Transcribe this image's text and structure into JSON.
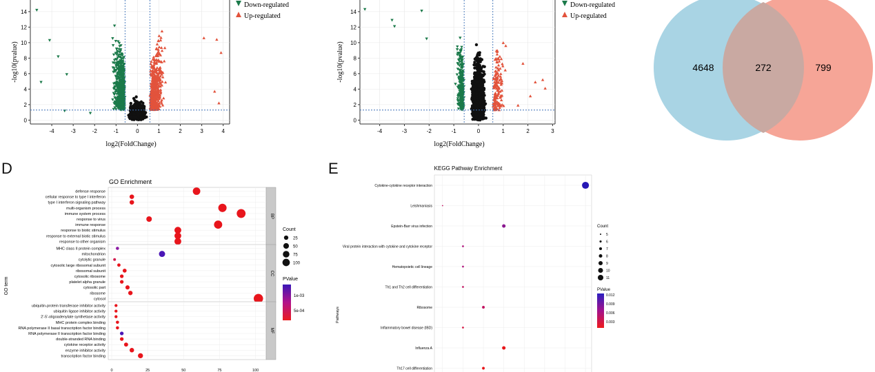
{
  "chart_data": [
    {
      "type": "scatter",
      "name": "volcano-a",
      "xlabel": "log2(FoldChange)",
      "ylabel": "-log10(pvalue)",
      "xlim": [
        -5,
        4.3
      ],
      "ylim": [
        -0.5,
        15.5
      ],
      "x_ticks": [
        "-4",
        "-3",
        "-2",
        "-1",
        "0",
        "1",
        "2",
        "3",
        "4"
      ],
      "x_tick_values": [
        -4,
        -3,
        -2,
        -1,
        0,
        1,
        2,
        3,
        4
      ],
      "y_ticks": [
        "0",
        "2",
        "4",
        "6",
        "8",
        "10",
        "12",
        "14"
      ],
      "y_tick_values": [
        0,
        2,
        4,
        6,
        8,
        10,
        12,
        14
      ],
      "fc_threshold": [
        -0.58,
        0.58
      ],
      "p_threshold": 1.3,
      "legend": [
        "Down-regulated",
        "Up-regulated"
      ],
      "colors": {
        "down": "#1b7a4a",
        "up": "#e2533c",
        "ns": "#111111",
        "threshold": "#3a6fb7"
      }
    },
    {
      "type": "scatter",
      "name": "volcano-b",
      "xlabel": "log2(FoldChange)",
      "ylabel": "-log10(pvalue)",
      "xlim": [
        -4.8,
        3.1
      ],
      "ylim": [
        -0.5,
        15.5
      ],
      "x_ticks": [
        "-4",
        "-3",
        "-2",
        "-1",
        "0",
        "1",
        "2",
        "3"
      ],
      "x_tick_values": [
        -4,
        -3,
        -2,
        -1,
        0,
        1,
        2,
        3
      ],
      "y_ticks": [
        "0",
        "2",
        "4",
        "6",
        "8",
        "10",
        "12",
        "14"
      ],
      "y_tick_values": [
        0,
        2,
        4,
        6,
        8,
        10,
        12,
        14
      ],
      "fc_threshold": [
        -0.58,
        0.58
      ],
      "p_threshold": 1.3,
      "legend": [
        "Down-regulated",
        "Up-regulated"
      ],
      "colors": {
        "down": "#1b7a4a",
        "up": "#e2533c",
        "ns": "#111111",
        "threshold": "#3a6fb7"
      }
    },
    {
      "type": "venn",
      "name": "venn",
      "left_only": "4648",
      "intersection": "272",
      "right_only": "799",
      "colors": {
        "left": "#a9d4e4",
        "right": "#f6a597",
        "overlap": "#c9a9a2"
      }
    },
    {
      "type": "scatter",
      "name": "go-enrichment",
      "panel_letter": "D",
      "title": "GO Enrichment",
      "xlabel": "",
      "ylabel": "GO term",
      "xlim": [
        0,
        105
      ],
      "x_ticks": [
        "0",
        "25",
        "50",
        "75",
        "100"
      ],
      "x_tick_values": [
        0,
        25,
        50,
        75,
        100
      ],
      "facets": [
        {
          "label": "BP",
          "terms": [
            {
              "term": "defense response",
              "count": 59,
              "p": 0.0001
            },
            {
              "term": "cellular response to type I interferon",
              "count": 14,
              "p": 0.0001
            },
            {
              "term": "type I interferon signaling pathway",
              "count": 14,
              "p": 0.0001
            },
            {
              "term": "multi-organism process",
              "count": 77,
              "p": 0.0001
            },
            {
              "term": "immune system process",
              "count": 90,
              "p": 0.0001
            },
            {
              "term": "response to virus",
              "count": 26,
              "p": 0.0001
            },
            {
              "term": "immune response",
              "count": 74,
              "p": 0.0001
            },
            {
              "term": "response to biotic stimulus",
              "count": 46,
              "p": 0.0001
            },
            {
              "term": "response to external biotic stimulus",
              "count": 46,
              "p": 0.0001
            },
            {
              "term": "response to other organism",
              "count": 46,
              "p": 0.0001
            }
          ]
        },
        {
          "label": "CC",
          "terms": [
            {
              "term": "MHC class II protein complex",
              "count": 4,
              "p": 0.0008
            },
            {
              "term": "mitochondrion",
              "count": 35,
              "p": 0.0011
            },
            {
              "term": "cytolytic granule",
              "count": 2,
              "p": 0.0003
            },
            {
              "term": "cytosolic large ribosomal subunit",
              "count": 5,
              "p": 0.0002
            },
            {
              "term": "ribosomal subunit",
              "count": 9,
              "p": 0.0002
            },
            {
              "term": "cytosolic ribosome",
              "count": 7,
              "p": 0.0002
            },
            {
              "term": "platelet alpha granule",
              "count": 7,
              "p": 0.0002
            },
            {
              "term": "cytosolic part",
              "count": 11,
              "p": 0.0001
            },
            {
              "term": "ribosome",
              "count": 13,
              "p": 0.0001
            },
            {
              "term": "cytosol",
              "count": 102,
              "p": 0.0001
            }
          ]
        },
        {
          "label": "MF",
          "terms": [
            {
              "term": "ubiquitin-protein transferase inhibitor activity",
              "count": 3,
              "p": 0.0002
            },
            {
              "term": "ubiquitin ligase inhibitor activity",
              "count": 3,
              "p": 0.0002
            },
            {
              "term": "2'-5'-oligoadenylate synthetase activity",
              "count": 3,
              "p": 0.0001
            },
            {
              "term": "MHC protein complex binding",
              "count": 4,
              "p": 0.0002
            },
            {
              "term": "RNA polymerase II basal transcription factor binding",
              "count": 4,
              "p": 0.0002
            },
            {
              "term": "RNA polymerase II transcription factor binding",
              "count": 7,
              "p": 0.0012
            },
            {
              "term": "double-stranded RNA binding",
              "count": 7,
              "p": 0.0002
            },
            {
              "term": "cytokine receptor activity",
              "count": 10,
              "p": 0.0002
            },
            {
              "term": "enzyme inhibitor activity",
              "count": 14,
              "p": 0.0001
            },
            {
              "term": "transcription factor binding",
              "count": 20,
              "p": 0.0001
            }
          ]
        }
      ],
      "size_legend": {
        "title": "Count",
        "labels": [
          "25",
          "50",
          "75",
          "100"
        ],
        "values": [
          25,
          50,
          75,
          100
        ]
      },
      "color_legend": {
        "title": "PValue",
        "labels": [
          "1e-03",
          "5e-04"
        ]
      }
    },
    {
      "type": "scatter",
      "name": "kegg-enrichment",
      "panel_letter": "E",
      "title": "KEGG Pathway Enrichment",
      "xlabel": "",
      "ylabel": "Pathways",
      "xlim": [
        3.6,
        11.3
      ],
      "pathways": [
        {
          "term": "Cytokine-cytokine receptor interaction",
          "count": 11,
          "p": 0.012
        },
        {
          "term": "Leishmaniasis",
          "count": 4,
          "p": 0.004
        },
        {
          "term": "Epstein-Barr virus infection",
          "count": 7,
          "p": 0.007
        },
        {
          "term": "Viral protein interaction with cytokine and cytokine receptor",
          "count": 5,
          "p": 0.006
        },
        {
          "term": "Hematopoietic cell lineage",
          "count": 5,
          "p": 0.005
        },
        {
          "term": "Th1 and Th2 cell differentiation",
          "count": 5,
          "p": 0.004
        },
        {
          "term": "Ribosome",
          "count": 6,
          "p": 0.004
        },
        {
          "term": "Inflammatory bowel disease (IBD)",
          "count": 5,
          "p": 0.003
        },
        {
          "term": "Influenza A",
          "count": 7,
          "p": 0.002
        },
        {
          "term": "Th17 cell differentiation",
          "count": 6,
          "p": 0.002
        }
      ],
      "size_legend": {
        "title": "Count",
        "labels": [
          "5",
          "6",
          "7",
          "8",
          "9",
          "10",
          "11"
        ],
        "values": [
          5,
          6,
          7,
          8,
          9,
          10,
          11
        ]
      },
      "color_legend": {
        "title": "PValue",
        "labels": [
          "0.012",
          "0.009",
          "0.006",
          "0.003"
        ]
      }
    }
  ]
}
